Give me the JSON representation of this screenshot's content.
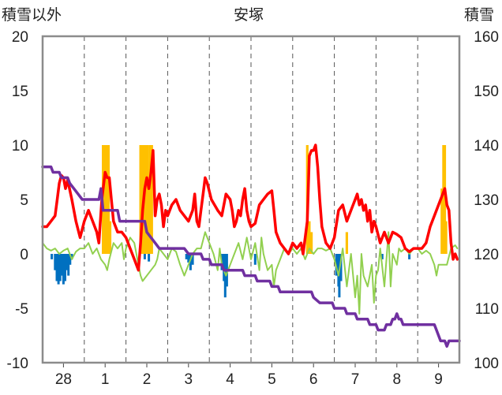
{
  "chart_data": {
    "type": "line",
    "title": "安塚",
    "y_left_label": "積雪以外",
    "y_right_label": "積雪",
    "ylim_left": [
      -10,
      20
    ],
    "ylim_right": [
      100,
      160
    ],
    "yticks_left": [
      "20",
      "15",
      "10",
      "5",
      "0",
      "-5",
      "-10"
    ],
    "yticks_right": [
      "160",
      "150",
      "140",
      "130",
      "120",
      "110",
      "100"
    ],
    "x_range_days": [
      -0.5,
      9.5
    ],
    "x_ticks": [
      {
        "day": 0,
        "label": "28"
      },
      {
        "day": 1,
        "label": "1"
      },
      {
        "day": 2,
        "label": "2"
      },
      {
        "day": 3,
        "label": "3"
      },
      {
        "day": 4,
        "label": "4"
      },
      {
        "day": 5,
        "label": "5"
      },
      {
        "day": 6,
        "label": "6"
      },
      {
        "day": 7,
        "label": "7"
      },
      {
        "day": 8,
        "label": "8"
      },
      {
        "day": 9,
        "label": "9"
      }
    ],
    "grid": "dashed vertical at each day",
    "colors": {
      "temperature": "#ff0000",
      "wind": "#92d050",
      "snow_depth": "#7030a0",
      "snowfall": "#ffc000",
      "negative_bars": "#0070c0"
    },
    "snowfall_bars": [
      [
        0.95,
        10
      ],
      [
        0.98,
        2
      ],
      [
        1.0,
        10
      ],
      [
        1.02,
        8
      ],
      [
        1.05,
        10
      ],
      [
        1.08,
        10
      ],
      [
        1.12,
        3
      ],
      [
        1.85,
        10
      ],
      [
        1.88,
        10
      ],
      [
        1.92,
        10
      ],
      [
        1.95,
        10
      ],
      [
        1.98,
        10
      ],
      [
        2.02,
        10
      ],
      [
        2.05,
        6
      ],
      [
        2.08,
        10
      ],
      [
        2.12,
        10
      ],
      [
        5.85,
        10
      ],
      [
        5.9,
        3
      ],
      [
        5.95,
        2
      ],
      [
        6.8,
        2
      ],
      [
        9.08,
        6
      ],
      [
        9.12,
        10
      ],
      [
        9.15,
        10
      ],
      [
        9.18,
        3
      ]
    ],
    "negative_bars": [
      [
        -0.28,
        -0.5
      ],
      [
        -0.2,
        -1.5
      ],
      [
        -0.16,
        -2.5
      ],
      [
        -0.12,
        -2.8
      ],
      [
        -0.08,
        -2.5
      ],
      [
        -0.04,
        -2.0
      ],
      [
        0.0,
        -2.8
      ],
      [
        0.04,
        -2.5
      ],
      [
        0.08,
        -1.5
      ],
      [
        0.12,
        -2.0
      ],
      [
        0.16,
        -1.0
      ],
      [
        0.2,
        -0.5
      ],
      [
        1.95,
        -0.5
      ],
      [
        2.05,
        -0.7
      ],
      [
        2.95,
        -0.5
      ],
      [
        3.0,
        -0.8
      ],
      [
        3.05,
        -1.5
      ],
      [
        3.1,
        -1.0
      ],
      [
        3.8,
        -1.5
      ],
      [
        3.85,
        -2.5
      ],
      [
        3.88,
        -4.0
      ],
      [
        3.92,
        -3.0
      ],
      [
        4.6,
        -1.0
      ],
      [
        6.55,
        -2.0
      ],
      [
        6.6,
        -3.0
      ],
      [
        6.62,
        -4.0
      ],
      [
        6.66,
        -2.5
      ],
      [
        7.65,
        -0.5
      ],
      [
        8.3,
        -0.5
      ]
    ],
    "temperature": [
      [
        -0.5,
        2.5
      ],
      [
        -0.4,
        2.5
      ],
      [
        -0.3,
        3.0
      ],
      [
        -0.2,
        3.5
      ],
      [
        -0.15,
        5.0
      ],
      [
        -0.1,
        6.5
      ],
      [
        -0.05,
        7.2
      ],
      [
        0.0,
        7.0
      ],
      [
        0.05,
        6.0
      ],
      [
        0.1,
        6.8
      ],
      [
        0.2,
        5.0
      ],
      [
        0.3,
        3.0
      ],
      [
        0.4,
        1.5
      ],
      [
        0.5,
        3.0
      ],
      [
        0.6,
        4.0
      ],
      [
        0.7,
        3.0
      ],
      [
        0.8,
        2.0
      ],
      [
        0.85,
        1.0
      ],
      [
        0.92,
        5.0
      ],
      [
        1.0,
        7.5
      ],
      [
        1.05,
        7.0
      ],
      [
        1.1,
        7.0
      ],
      [
        1.15,
        5.0
      ],
      [
        1.2,
        3.0
      ],
      [
        1.3,
        2.0
      ],
      [
        1.4,
        2.0
      ],
      [
        1.5,
        1.5
      ],
      [
        1.6,
        0.5
      ],
      [
        1.7,
        -0.5
      ],
      [
        1.8,
        -1.5
      ],
      [
        1.85,
        1.0
      ],
      [
        1.9,
        4.0
      ],
      [
        1.95,
        6.0
      ],
      [
        2.0,
        7.0
      ],
      [
        2.05,
        6.0
      ],
      [
        2.1,
        7.5
      ],
      [
        2.15,
        9.5
      ],
      [
        2.2,
        3.5
      ],
      [
        2.25,
        5.0
      ],
      [
        2.3,
        5.5
      ],
      [
        2.35,
        4.5
      ],
      [
        2.4,
        2.5
      ],
      [
        2.45,
        4.0
      ],
      [
        2.5,
        3.5
      ],
      [
        2.6,
        4.5
      ],
      [
        2.7,
        5.0
      ],
      [
        2.8,
        4.0
      ],
      [
        2.9,
        3.5
      ],
      [
        3.0,
        3.0
      ],
      [
        3.1,
        4.0
      ],
      [
        3.15,
        5.5
      ],
      [
        3.2,
        3.0
      ],
      [
        3.25,
        2.5
      ],
      [
        3.3,
        4.0
      ],
      [
        3.35,
        5.5
      ],
      [
        3.4,
        7.0
      ],
      [
        3.45,
        6.5
      ],
      [
        3.55,
        5.0
      ],
      [
        3.7,
        4.0
      ],
      [
        3.8,
        3.5
      ],
      [
        3.9,
        5.5
      ],
      [
        4.0,
        5.0
      ],
      [
        4.05,
        4.0
      ],
      [
        4.1,
        2.5
      ],
      [
        4.15,
        3.0
      ],
      [
        4.2,
        4.0
      ],
      [
        4.25,
        3.5
      ],
      [
        4.3,
        5.0
      ],
      [
        4.35,
        6.0
      ],
      [
        4.4,
        4.0
      ],
      [
        4.45,
        3.0
      ],
      [
        4.5,
        2.5
      ],
      [
        4.6,
        2.8
      ],
      [
        4.7,
        4.5
      ],
      [
        4.8,
        5.0
      ],
      [
        4.9,
        5.5
      ],
      [
        5.0,
        5.8
      ],
      [
        5.05,
        4.0
      ],
      [
        5.1,
        2.0
      ],
      [
        5.2,
        1.0
      ],
      [
        5.3,
        0.5
      ],
      [
        5.4,
        0.0
      ],
      [
        5.5,
        1.0
      ],
      [
        5.6,
        0.5
      ],
      [
        5.7,
        1.0
      ],
      [
        5.75,
        0.0
      ],
      [
        5.85,
        3.0
      ],
      [
        5.9,
        9.0
      ],
      [
        5.95,
        9.5
      ],
      [
        6.0,
        9.5
      ],
      [
        6.05,
        10.0
      ],
      [
        6.1,
        8.0
      ],
      [
        6.15,
        5.0
      ],
      [
        6.2,
        2.5
      ],
      [
        6.3,
        1.0
      ],
      [
        6.4,
        0.5
      ],
      [
        6.5,
        1.5
      ],
      [
        6.6,
        4.0
      ],
      [
        6.7,
        4.5
      ],
      [
        6.8,
        3.0
      ],
      [
        6.9,
        4.0
      ],
      [
        7.0,
        5.0
      ],
      [
        7.05,
        5.5
      ],
      [
        7.1,
        4.5
      ],
      [
        7.15,
        5.0
      ],
      [
        7.2,
        4.0
      ],
      [
        7.25,
        4.5
      ],
      [
        7.3,
        3.0
      ],
      [
        7.35,
        4.0
      ],
      [
        7.4,
        2.0
      ],
      [
        7.45,
        3.0
      ],
      [
        7.5,
        2.5
      ],
      [
        7.6,
        1.0
      ],
      [
        7.7,
        2.0
      ],
      [
        7.75,
        1.5
      ],
      [
        7.8,
        1.0
      ],
      [
        7.9,
        2.0
      ],
      [
        8.0,
        1.8
      ],
      [
        8.1,
        1.5
      ],
      [
        8.2,
        0.5
      ],
      [
        8.3,
        0.2
      ],
      [
        8.4,
        0.5
      ],
      [
        8.6,
        0.5
      ],
      [
        8.7,
        1.0
      ],
      [
        8.8,
        2.5
      ],
      [
        8.9,
        3.5
      ],
      [
        9.0,
        4.5
      ],
      [
        9.1,
        5.5
      ],
      [
        9.15,
        6.0
      ],
      [
        9.2,
        4.5
      ],
      [
        9.25,
        4.0
      ],
      [
        9.3,
        1.0
      ],
      [
        9.35,
        -0.5
      ],
      [
        9.4,
        0.0
      ],
      [
        9.45,
        -0.5
      ]
    ],
    "wind": [
      [
        -0.5,
        1.0
      ],
      [
        -0.4,
        0.5
      ],
      [
        -0.3,
        0.3
      ],
      [
        -0.2,
        0.5
      ],
      [
        -0.1,
        0.0
      ],
      [
        0.0,
        0.3
      ],
      [
        0.1,
        0.5
      ],
      [
        0.2,
        -0.5
      ],
      [
        0.3,
        0.2
      ],
      [
        0.4,
        0.5
      ],
      [
        0.5,
        0.5
      ],
      [
        0.6,
        1.0
      ],
      [
        0.7,
        0.0
      ],
      [
        0.8,
        0.5
      ],
      [
        0.9,
        -0.5
      ],
      [
        1.0,
        -1.0
      ],
      [
        1.05,
        -1.5
      ],
      [
        1.1,
        -0.5
      ],
      [
        1.2,
        1.0
      ],
      [
        1.3,
        0.5
      ],
      [
        1.4,
        1.0
      ],
      [
        1.45,
        -0.5
      ],
      [
        1.5,
        0.5
      ],
      [
        1.6,
        1.5
      ],
      [
        1.7,
        1.0
      ],
      [
        1.75,
        0.0
      ],
      [
        1.8,
        -1.0
      ],
      [
        1.85,
        -2.0
      ],
      [
        1.9,
        -2.5
      ],
      [
        2.0,
        -2.0
      ],
      [
        2.1,
        -1.5
      ],
      [
        2.2,
        -1.0
      ],
      [
        2.25,
        -0.5
      ],
      [
        2.3,
        0.5
      ],
      [
        2.4,
        0.0
      ],
      [
        2.5,
        -0.5
      ],
      [
        2.6,
        0.5
      ],
      [
        2.7,
        0.2
      ],
      [
        2.8,
        -1.0
      ],
      [
        2.9,
        -2.0
      ],
      [
        3.0,
        -1.0
      ],
      [
        3.1,
        0.0
      ],
      [
        3.2,
        0.5
      ],
      [
        3.3,
        0.5
      ],
      [
        3.4,
        2.0
      ],
      [
        3.5,
        1.0
      ],
      [
        3.6,
        0.0
      ],
      [
        3.7,
        -1.5
      ],
      [
        3.75,
        0.5
      ],
      [
        3.8,
        -1.0
      ],
      [
        3.9,
        -2.0
      ],
      [
        4.0,
        -1.0
      ],
      [
        4.1,
        0.0
      ],
      [
        4.2,
        1.0
      ],
      [
        4.3,
        -0.5
      ],
      [
        4.4,
        1.5
      ],
      [
        4.5,
        -0.5
      ],
      [
        4.6,
        1.0
      ],
      [
        4.7,
        -1.5
      ],
      [
        4.75,
        1.5
      ],
      [
        4.8,
        0.0
      ],
      [
        4.9,
        -1.5
      ],
      [
        5.0,
        -1.0
      ],
      [
        5.05,
        -3.0
      ],
      [
        5.1,
        -1.5
      ],
      [
        5.2,
        -0.5
      ],
      [
        5.3,
        0.5
      ],
      [
        5.4,
        0.0
      ],
      [
        5.5,
        0.5
      ],
      [
        5.6,
        0.0
      ],
      [
        5.7,
        0.5
      ],
      [
        5.8,
        -0.5
      ],
      [
        5.9,
        0.5
      ],
      [
        6.0,
        0.0
      ],
      [
        6.1,
        0.5
      ],
      [
        6.2,
        0.5
      ],
      [
        6.3,
        0.3
      ],
      [
        6.4,
        0.5
      ],
      [
        6.5,
        -0.5
      ],
      [
        6.6,
        -2.0
      ],
      [
        6.7,
        0.5
      ],
      [
        6.8,
        -3.0
      ],
      [
        6.9,
        0.0
      ],
      [
        7.0,
        -4.0
      ],
      [
        7.05,
        -2.0
      ],
      [
        7.1,
        -5.5
      ],
      [
        7.15,
        0.0
      ],
      [
        7.2,
        -2.0
      ],
      [
        7.3,
        -3.0
      ],
      [
        7.4,
        -1.0
      ],
      [
        7.45,
        -4.5
      ],
      [
        7.5,
        -2.0
      ],
      [
        7.55,
        -1.5
      ],
      [
        7.6,
        0.5
      ],
      [
        7.7,
        -3.0
      ],
      [
        7.8,
        2.0
      ],
      [
        7.85,
        -3.0
      ],
      [
        7.9,
        0.0
      ],
      [
        8.0,
        -1.0
      ],
      [
        8.05,
        0.5
      ],
      [
        8.1,
        0.2
      ],
      [
        8.2,
        0.5
      ],
      [
        8.3,
        0.0
      ],
      [
        8.4,
        0.5
      ],
      [
        8.5,
        0.5
      ],
      [
        8.6,
        0.0
      ],
      [
        8.7,
        0.3
      ],
      [
        8.8,
        0.0
      ],
      [
        8.9,
        -1.0
      ],
      [
        8.95,
        -2.0
      ],
      [
        9.0,
        -1.0
      ],
      [
        9.1,
        -1.0
      ],
      [
        9.2,
        -1.0
      ],
      [
        9.3,
        0.5
      ],
      [
        9.4,
        0.8
      ],
      [
        9.45,
        0.5
      ]
    ],
    "snow_depth": [
      [
        -0.5,
        136
      ],
      [
        -0.3,
        136
      ],
      [
        -0.25,
        135
      ],
      [
        -0.1,
        135
      ],
      [
        -0.05,
        134
      ],
      [
        0.1,
        134
      ],
      [
        0.15,
        133
      ],
      [
        0.25,
        132
      ],
      [
        0.35,
        131
      ],
      [
        0.45,
        130
      ],
      [
        0.85,
        130
      ],
      [
        0.9,
        132
      ],
      [
        0.95,
        128
      ],
      [
        1.3,
        128
      ],
      [
        1.35,
        126
      ],
      [
        1.95,
        126
      ],
      [
        2.0,
        124
      ],
      [
        2.1,
        123
      ],
      [
        2.2,
        122
      ],
      [
        2.3,
        121
      ],
      [
        2.5,
        121
      ],
      [
        2.6,
        121
      ],
      [
        2.9,
        121
      ],
      [
        3.0,
        120
      ],
      [
        3.3,
        120
      ],
      [
        3.35,
        119
      ],
      [
        3.5,
        119
      ],
      [
        3.55,
        118
      ],
      [
        3.8,
        118
      ],
      [
        3.85,
        117
      ],
      [
        4.3,
        117
      ],
      [
        4.35,
        116
      ],
      [
        4.6,
        116
      ],
      [
        4.65,
        115
      ],
      [
        4.95,
        115
      ],
      [
        5.0,
        114
      ],
      [
        5.15,
        114
      ],
      [
        5.2,
        113
      ],
      [
        5.95,
        113
      ],
      [
        6.0,
        112
      ],
      [
        6.15,
        111
      ],
      [
        6.45,
        111
      ],
      [
        6.5,
        110
      ],
      [
        6.75,
        110
      ],
      [
        6.8,
        109
      ],
      [
        7.0,
        109
      ],
      [
        7.05,
        108
      ],
      [
        7.3,
        108
      ],
      [
        7.35,
        107
      ],
      [
        7.5,
        107
      ],
      [
        7.55,
        106
      ],
      [
        7.7,
        106
      ],
      [
        7.75,
        107
      ],
      [
        7.85,
        107
      ],
      [
        7.9,
        108
      ],
      [
        7.95,
        108
      ],
      [
        8.0,
        109
      ],
      [
        8.05,
        108
      ],
      [
        8.1,
        108
      ],
      [
        8.15,
        107
      ],
      [
        8.9,
        107
      ],
      [
        8.95,
        106
      ],
      [
        9.0,
        105
      ],
      [
        9.05,
        104
      ],
      [
        9.15,
        104
      ],
      [
        9.2,
        103
      ],
      [
        9.25,
        104
      ],
      [
        9.5,
        104
      ]
    ]
  }
}
